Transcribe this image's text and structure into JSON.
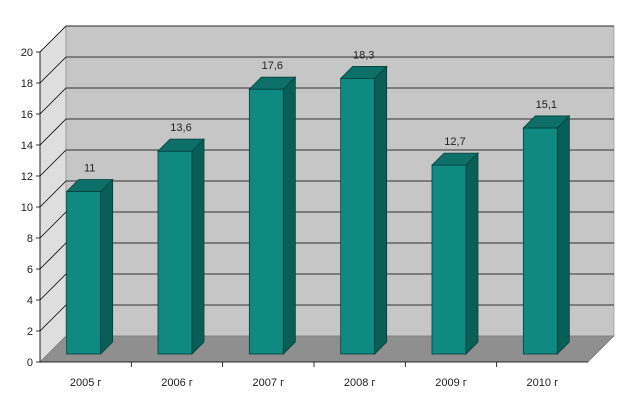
{
  "chart_data": {
    "type": "bar",
    "categories": [
      "2005 г",
      "2006 г",
      "2007 г",
      "2008 г",
      "2009 г",
      "2010 г"
    ],
    "values": [
      11,
      13.6,
      17.6,
      18.3,
      12.7,
      15.1
    ],
    "value_labels": [
      "11",
      "13,6",
      "17,6",
      "18,3",
      "12,7",
      "15,1"
    ],
    "y_ticks": [
      "0",
      "2",
      "4",
      "6",
      "8",
      "10",
      "12",
      "14",
      "16",
      "18",
      "20"
    ],
    "ylim": [
      0,
      20
    ],
    "grid": true,
    "style": "3d",
    "colors": {
      "bar_front": "#0e8a82",
      "bar_side": "#0a5e58",
      "bar_top": "#0c7069",
      "back_wall": "#c6c6c6",
      "side_wall": "#dedede",
      "floor": "#8f8f8f",
      "gridline": "#000000"
    }
  }
}
